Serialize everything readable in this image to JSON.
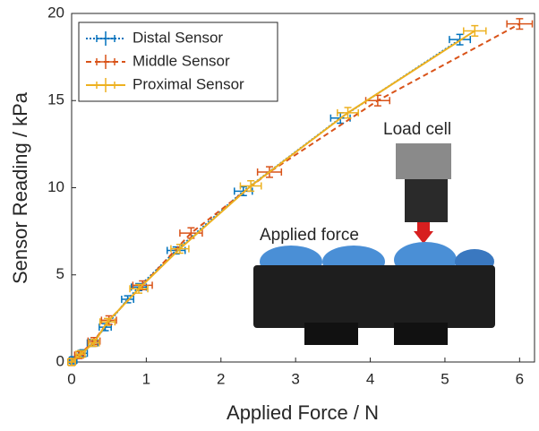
{
  "chart_data": {
    "type": "errorbar-line",
    "xlabel": "Applied Force / N",
    "ylabel": "Sensor Reading / kPa",
    "xlim": [
      0,
      6.2
    ],
    "ylim": [
      0,
      20
    ],
    "xticks": [
      0,
      1,
      2,
      3,
      4,
      5,
      6
    ],
    "yticks": [
      0,
      5,
      10,
      15,
      20
    ],
    "legend": "upper left",
    "annotations": [
      "Load cell",
      "Applied force"
    ],
    "series": [
      {
        "name": "Distal Sensor",
        "color": "#0072bd",
        "linestyle": "dotted",
        "x": [
          0.02,
          0.15,
          0.28,
          0.45,
          0.75,
          0.9,
          1.4,
          2.3,
          3.6,
          5.2
        ],
        "y": [
          0.1,
          0.5,
          1.1,
          2.0,
          3.6,
          4.3,
          6.4,
          9.8,
          14.0,
          18.5
        ],
        "xerr": [
          0.05,
          0.06,
          0.07,
          0.08,
          0.08,
          0.1,
          0.12,
          0.12,
          0.13,
          0.14
        ],
        "yerr": [
          0.2,
          0.2,
          0.2,
          0.2,
          0.2,
          0.2,
          0.2,
          0.25,
          0.3,
          0.3
        ]
      },
      {
        "name": "Middle Sensor",
        "color": "#d95319",
        "linestyle": "dashed",
        "x": [
          0,
          0.1,
          0.3,
          0.5,
          0.95,
          1.6,
          2.65,
          4.1,
          6.0
        ],
        "y": [
          0,
          0.4,
          1.2,
          2.4,
          4.4,
          7.4,
          10.9,
          15.0,
          19.4
        ],
        "xerr": [
          0.05,
          0.06,
          0.08,
          0.1,
          0.13,
          0.15,
          0.16,
          0.16,
          0.17
        ],
        "yerr": [
          0.2,
          0.2,
          0.2,
          0.25,
          0.25,
          0.3,
          0.3,
          0.3,
          0.3
        ]
      },
      {
        "name": "Proximal Sensor",
        "color": "#edb120",
        "linestyle": "solid",
        "x": [
          0,
          0.12,
          0.3,
          0.48,
          0.9,
          1.45,
          2.4,
          3.7,
          5.4
        ],
        "y": [
          0,
          0.45,
          1.1,
          2.3,
          4.2,
          6.5,
          10.1,
          14.3,
          19.0
        ],
        "xerr": [
          0.05,
          0.06,
          0.07,
          0.1,
          0.12,
          0.12,
          0.14,
          0.14,
          0.15
        ],
        "yerr": [
          0.2,
          0.2,
          0.2,
          0.2,
          0.25,
          0.25,
          0.3,
          0.3,
          0.3
        ]
      }
    ]
  }
}
